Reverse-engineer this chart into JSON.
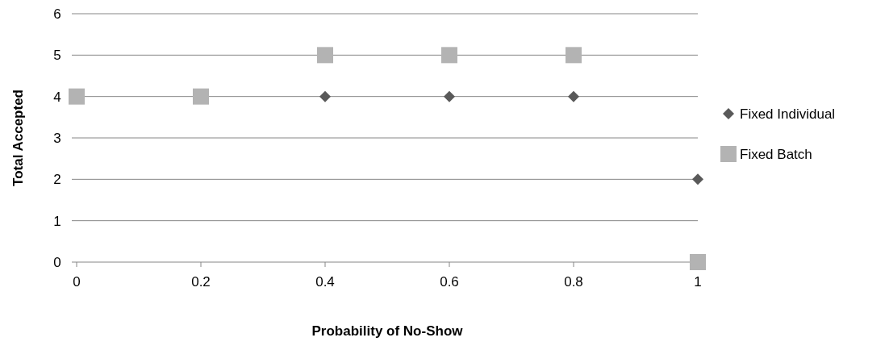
{
  "chart_data": {
    "type": "scatter",
    "xlabel": "Probability of No-Show",
    "ylabel": "Total Accepted",
    "x": [
      0,
      0.2,
      0.4,
      0.6,
      0.8,
      1
    ],
    "series": [
      {
        "name": "Fixed Individual",
        "color": "#595959",
        "marker": "diamond",
        "values": [
          null,
          null,
          4,
          4,
          4,
          2
        ]
      },
      {
        "name": "Fixed Batch",
        "color": "#b3b3b3",
        "marker": "square",
        "values": [
          4,
          4,
          5,
          5,
          5,
          0
        ]
      }
    ],
    "xlim": [
      0,
      1
    ],
    "xticks": [
      0,
      0.2,
      0.4,
      0.6,
      0.8,
      1
    ],
    "ylim": [
      0,
      6
    ],
    "yticks": [
      0,
      1,
      2,
      3,
      4,
      5,
      6
    ],
    "grid": "y",
    "legend": "right"
  }
}
